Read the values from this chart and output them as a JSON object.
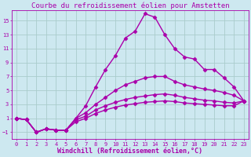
{
  "title": "Courbe du refroidissement éolien pour Amstetten",
  "xlabel": "Windchill (Refroidissement éolien,°C)",
  "bg_color": "#cde8f0",
  "line_color": "#aa00aa",
  "grid_color": "#aacccc",
  "xlim": [
    -0.5,
    23.5
  ],
  "ylim": [
    -2.0,
    16.5
  ],
  "yticks": [
    -1,
    1,
    3,
    5,
    7,
    9,
    11,
    13,
    15
  ],
  "xticks": [
    0,
    1,
    2,
    3,
    4,
    5,
    6,
    7,
    8,
    9,
    10,
    11,
    12,
    13,
    14,
    15,
    16,
    17,
    18,
    19,
    20,
    21,
    22,
    23
  ],
  "lines": [
    {
      "x": [
        0,
        1,
        2,
        3,
        4,
        5,
        6,
        7,
        8,
        9,
        10,
        11,
        12,
        13,
        14,
        15,
        16,
        17,
        18,
        19,
        20,
        21,
        22,
        23
      ],
      "y": [
        1,
        0.8,
        -1,
        -0.5,
        -0.7,
        -0.7,
        1.0,
        2.8,
        5.5,
        8.0,
        10.0,
        12.5,
        13.5,
        16.0,
        15.5,
        13.0,
        11.0,
        9.8,
        9.5,
        8.0,
        8.0,
        6.8,
        5.5,
        3.5
      ]
    },
    {
      "x": [
        0,
        1,
        2,
        3,
        4,
        5,
        6,
        7,
        8,
        9,
        10,
        11,
        12,
        13,
        14,
        15,
        16,
        17,
        18,
        19,
        20,
        21,
        22,
        23
      ],
      "y": [
        1,
        0.8,
        -1,
        -0.5,
        -0.7,
        -0.7,
        1.0,
        1.8,
        3.0,
        4.0,
        5.0,
        5.8,
        6.3,
        6.8,
        7.0,
        7.0,
        6.3,
        5.8,
        5.5,
        5.2,
        5.0,
        4.7,
        4.3,
        3.5
      ]
    },
    {
      "x": [
        0,
        1,
        2,
        3,
        4,
        5,
        6,
        7,
        8,
        9,
        10,
        11,
        12,
        13,
        14,
        15,
        16,
        17,
        18,
        19,
        20,
        21,
        22,
        23
      ],
      "y": [
        1,
        0.8,
        -1,
        -0.5,
        -0.7,
        -0.7,
        0.8,
        1.3,
        2.2,
        2.8,
        3.3,
        3.7,
        4.0,
        4.2,
        4.4,
        4.5,
        4.3,
        4.0,
        3.8,
        3.6,
        3.5,
        3.3,
        3.2,
        3.5
      ]
    },
    {
      "x": [
        0,
        1,
        2,
        3,
        4,
        5,
        6,
        7,
        8,
        9,
        10,
        11,
        12,
        13,
        14,
        15,
        16,
        17,
        18,
        19,
        20,
        21,
        22,
        23
      ],
      "y": [
        1,
        0.8,
        -1,
        -0.5,
        -0.7,
        -0.7,
        0.5,
        1.0,
        1.7,
        2.2,
        2.6,
        2.9,
        3.1,
        3.3,
        3.4,
        3.5,
        3.4,
        3.2,
        3.1,
        3.0,
        2.9,
        2.8,
        2.8,
        3.5
      ]
    }
  ],
  "marker": "D",
  "markersize": 2.5,
  "linewidth": 1.0,
  "tick_fontsize": 5.0,
  "xlabel_fontsize": 6.0,
  "title_fontsize": 6.5
}
